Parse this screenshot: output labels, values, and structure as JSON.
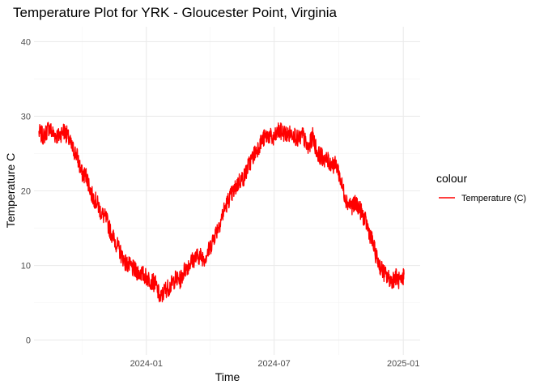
{
  "chart_data": {
    "type": "line",
    "title": "Temperature Plot for YRK - Gloucester Point, Virginia",
    "xlabel": "Time",
    "ylabel": "Temperature C",
    "xlim": [
      "2023-07-25",
      "2025-01-25"
    ],
    "ylim": [
      -2,
      42
    ],
    "x_ticks": [
      {
        "value": "2024-01-01",
        "label": "2024-01"
      },
      {
        "value": "2024-07-01",
        "label": "2024-07"
      },
      {
        "value": "2025-01-01",
        "label": "2025-01"
      }
    ],
    "y_ticks": [
      0,
      10,
      20,
      30,
      40
    ],
    "grid": true,
    "legend": {
      "title": "colour",
      "position": "right"
    },
    "series": [
      {
        "name": "Temperature (C)",
        "color": "#ff0000",
        "points": [
          [
            "2023-08-01",
            27.8
          ],
          [
            "2023-08-08",
            27.3
          ],
          [
            "2023-08-15",
            28.5
          ],
          [
            "2023-08-22",
            27.6
          ],
          [
            "2023-08-29",
            27.3
          ],
          [
            "2023-09-05",
            28.1
          ],
          [
            "2023-09-10",
            27.5
          ],
          [
            "2023-09-17",
            25.8
          ],
          [
            "2023-09-24",
            24.8
          ],
          [
            "2023-10-01",
            22.3
          ],
          [
            "2023-10-08",
            22.0
          ],
          [
            "2023-10-15",
            19.5
          ],
          [
            "2023-10-22",
            18.5
          ],
          [
            "2023-10-29",
            17.0
          ],
          [
            "2023-11-05",
            16.2
          ],
          [
            "2023-11-12",
            14.3
          ],
          [
            "2023-11-19",
            13.0
          ],
          [
            "2023-11-26",
            11.5
          ],
          [
            "2023-12-03",
            10.3
          ],
          [
            "2023-12-10",
            9.8
          ],
          [
            "2023-12-17",
            9.2
          ],
          [
            "2023-12-24",
            9.0
          ],
          [
            "2023-12-31",
            8.5
          ],
          [
            "2024-01-07",
            8.0
          ],
          [
            "2024-01-14",
            7.5
          ],
          [
            "2024-01-21",
            5.5
          ],
          [
            "2024-01-28",
            6.8
          ],
          [
            "2024-02-04",
            7.2
          ],
          [
            "2024-02-11",
            8.2
          ],
          [
            "2024-02-18",
            8.0
          ],
          [
            "2024-02-25",
            9.5
          ],
          [
            "2024-03-03",
            10.3
          ],
          [
            "2024-03-10",
            11.0
          ],
          [
            "2024-03-17",
            11.3
          ],
          [
            "2024-03-24",
            11.0
          ],
          [
            "2024-03-31",
            12.2
          ],
          [
            "2024-04-07",
            14.0
          ],
          [
            "2024-04-14",
            15.5
          ],
          [
            "2024-04-21",
            17.5
          ],
          [
            "2024-04-28",
            19.0
          ],
          [
            "2024-05-05",
            20.0
          ],
          [
            "2024-05-12",
            21.3
          ],
          [
            "2024-05-19",
            21.8
          ],
          [
            "2024-05-26",
            23.5
          ],
          [
            "2024-06-02",
            24.8
          ],
          [
            "2024-06-09",
            26.0
          ],
          [
            "2024-06-16",
            27.0
          ],
          [
            "2024-06-23",
            27.5
          ],
          [
            "2024-06-30",
            26.8
          ],
          [
            "2024-07-07",
            28.0
          ],
          [
            "2024-07-14",
            27.8
          ],
          [
            "2024-07-21",
            27.5
          ],
          [
            "2024-07-28",
            27.8
          ],
          [
            "2024-08-04",
            26.8
          ],
          [
            "2024-08-11",
            27.5
          ],
          [
            "2024-08-18",
            25.5
          ],
          [
            "2024-08-25",
            27.3
          ],
          [
            "2024-09-01",
            25.0
          ],
          [
            "2024-09-08",
            24.5
          ],
          [
            "2024-09-15",
            24.0
          ],
          [
            "2024-09-22",
            23.6
          ],
          [
            "2024-09-29",
            23.3
          ],
          [
            "2024-10-06",
            20.5
          ],
          [
            "2024-10-13",
            18.5
          ],
          [
            "2024-10-20",
            18.0
          ],
          [
            "2024-10-27",
            18.3
          ],
          [
            "2024-11-03",
            17.0
          ],
          [
            "2024-11-10",
            15.5
          ],
          [
            "2024-11-17",
            13.5
          ],
          [
            "2024-11-24",
            11.0
          ],
          [
            "2024-12-01",
            9.5
          ],
          [
            "2024-12-08",
            8.5
          ],
          [
            "2024-12-15",
            8.0
          ],
          [
            "2024-12-22",
            8.5
          ],
          [
            "2024-12-29",
            7.5
          ],
          [
            "2025-01-02",
            8.8
          ]
        ]
      }
    ]
  }
}
